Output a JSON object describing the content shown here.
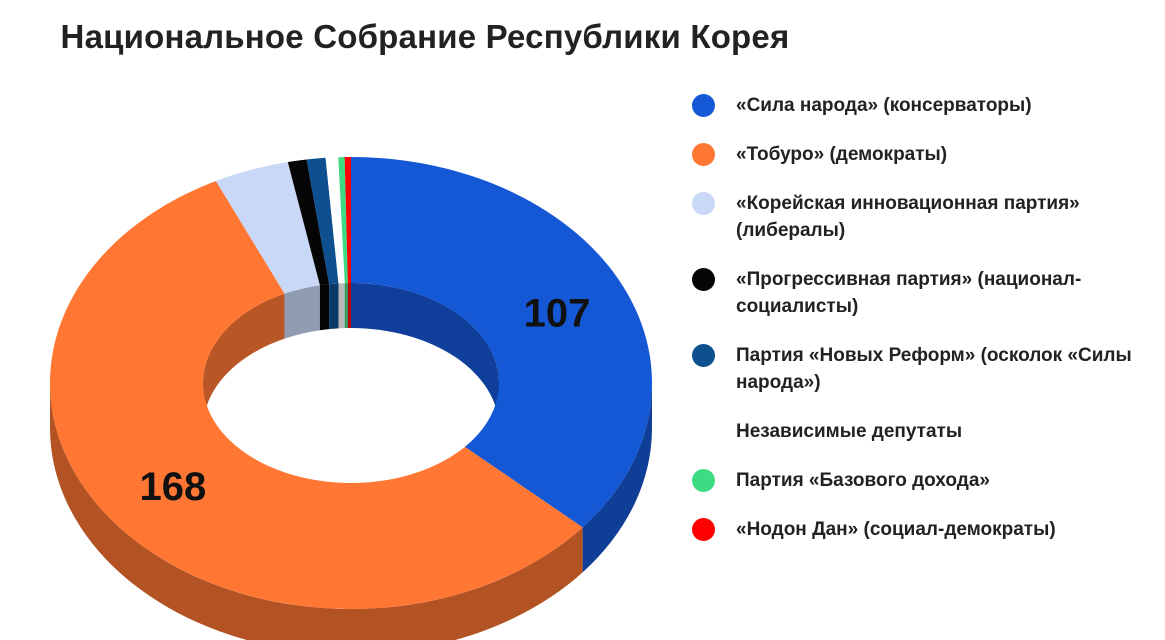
{
  "chart_data": {
    "type": "pie",
    "variant": "3d-donut",
    "title": "Национальное Собрание Республики Корея",
    "legend_position": "right",
    "series": [
      {
        "name": "«Сила народа» (консерваторы)",
        "value": 107,
        "color": "#1558d6",
        "data_label": "107"
      },
      {
        "name": "«Тобуро» (демократы)",
        "value": 168,
        "color": "#ff7733",
        "data_label": "168"
      },
      {
        "name": "«Корейская инновационная партия» (либералы)",
        "value": 12,
        "color": "#c8d8f6",
        "data_label": ""
      },
      {
        "name": "«Прогрессивная партия» (национал-социалисты)",
        "value": 3,
        "color": "#050505",
        "data_label": ""
      },
      {
        "name": "Партия «Новых Реформ» (осколок «Силы народа»)",
        "value": 3,
        "color": "#0d4f8f",
        "data_label": ""
      },
      {
        "name": "Независимые депутаты",
        "value": 2,
        "color": "#ffffff",
        "data_label": ""
      },
      {
        "name": "Партия «Базового дохода»",
        "value": 1,
        "color": "#3ddc84",
        "data_label": ""
      },
      {
        "name": "«Нодон Дан» (социал-демократы)",
        "value": 1,
        "color": "#ff0000",
        "data_label": ""
      }
    ]
  }
}
